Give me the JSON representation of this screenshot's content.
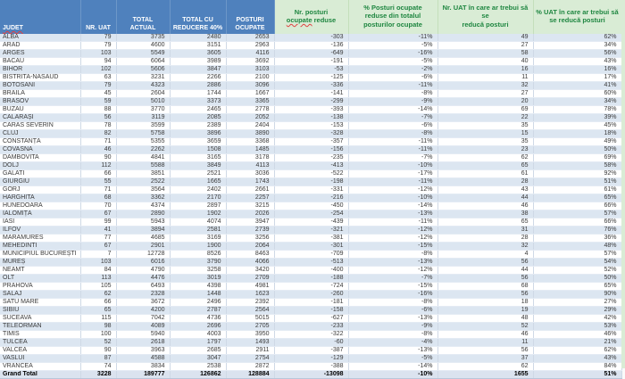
{
  "colors": {
    "header_blue": "#4f81bd",
    "header_text": "#ffffff",
    "green_header_bg": "#d9ecd5",
    "green_header_text": "#1e8640",
    "banded_row": "#dce6f1",
    "grand_total_bg": "#dbe3ef",
    "spellcheck_underline": "#e04040"
  },
  "table": {
    "headers": [
      {
        "group": "blue",
        "label": "JUDET",
        "parts": {
          "pre": "",
          "underline": "JUDET",
          "post": ""
        }
      },
      {
        "group": "blue",
        "label": "NR. UAT"
      },
      {
        "group": "blue",
        "label": "TOTAL\nACTUAL"
      },
      {
        "group": "blue",
        "label": "TOTAL CU\nREDUCERE 40%"
      },
      {
        "group": "blue",
        "label": "POSTURI\nOCUPATE"
      },
      {
        "group": "green",
        "label": "Nr. posturi\nocupate reduse",
        "parts": {
          "pre": "Nr. posturi\n",
          "underline": "ocupate",
          "post": " reduse"
        }
      },
      {
        "group": "green",
        "label": "% Posturi ocupate\nreduse din totalul\nposturilor ocupate"
      },
      {
        "group": "green",
        "label": "Nr. UAT în care ar trebui să se\nreducă posturi"
      },
      {
        "group": "green",
        "label": "% UAT în care ar trebui să\nse reducă posturi"
      }
    ],
    "rows": [
      [
        "ALBA",
        "79",
        "3735",
        "2480",
        "2653",
        "-303",
        "-11%",
        "49",
        "62%"
      ],
      [
        "ARAD",
        "79",
        "4600",
        "3151",
        "2963",
        "-136",
        "-5%",
        "27",
        "34%"
      ],
      [
        "ARGES",
        "103",
        "5549",
        "3605",
        "4116",
        "-649",
        "-16%",
        "58",
        "56%"
      ],
      [
        "BACAU",
        "94",
        "6064",
        "3989",
        "3692",
        "-191",
        "-5%",
        "40",
        "43%"
      ],
      [
        "BIHOR",
        "102",
        "5606",
        "3847",
        "3103",
        "-53",
        "-2%",
        "16",
        "16%"
      ],
      [
        "BISTRITA-NASAUD",
        "63",
        "3231",
        "2266",
        "2100",
        "-125",
        "-6%",
        "11",
        "17%"
      ],
      [
        "BOTOSANI",
        "79",
        "4323",
        "2886",
        "3096",
        "-336",
        "-11%",
        "32",
        "41%"
      ],
      [
        "BRAILA",
        "45",
        "2604",
        "1744",
        "1667",
        "-141",
        "-8%",
        "27",
        "60%"
      ],
      [
        "BRASOV",
        "59",
        "5010",
        "3373",
        "3365",
        "-299",
        "-9%",
        "20",
        "34%"
      ],
      [
        "BUZAU",
        "88",
        "3770",
        "2465",
        "2778",
        "-393",
        "-14%",
        "69",
        "78%"
      ],
      [
        "CĂLĂRAȘI",
        "56",
        "3119",
        "2085",
        "2052",
        "-138",
        "-7%",
        "22",
        "39%"
      ],
      [
        "CARAS SEVERIN",
        "78",
        "3599",
        "2389",
        "2404",
        "-153",
        "-6%",
        "35",
        "45%"
      ],
      [
        "CLUJ",
        "82",
        "5758",
        "3896",
        "3890",
        "-328",
        "-8%",
        "15",
        "18%"
      ],
      [
        "CONSTANȚA",
        "71",
        "5355",
        "3659",
        "3368",
        "-357",
        "-11%",
        "35",
        "49%"
      ],
      [
        "COVASNA",
        "46",
        "2262",
        "1508",
        "1485",
        "-156",
        "-11%",
        "23",
        "50%"
      ],
      [
        "DAMBOVITA",
        "90",
        "4841",
        "3165",
        "3178",
        "-235",
        "-7%",
        "62",
        "69%"
      ],
      [
        "DOLJ",
        "112",
        "5588",
        "3849",
        "4113",
        "-413",
        "-10%",
        "65",
        "58%"
      ],
      [
        "GALATI",
        "66",
        "3851",
        "2521",
        "3036",
        "-522",
        "-17%",
        "61",
        "92%"
      ],
      [
        "GIURGIU",
        "55",
        "2522",
        "1665",
        "1743",
        "-198",
        "-11%",
        "28",
        "51%"
      ],
      [
        "GORJ",
        "71",
        "3564",
        "2402",
        "2661",
        "-331",
        "-12%",
        "43",
        "61%"
      ],
      [
        "HARGHITA",
        "68",
        "3362",
        "2170",
        "2257",
        "-216",
        "-10%",
        "44",
        "65%"
      ],
      [
        "HUNEDOARA",
        "70",
        "4374",
        "2897",
        "3215",
        "-450",
        "-14%",
        "46",
        "66%"
      ],
      [
        "IALOMIȚA",
        "67",
        "2890",
        "1902",
        "2026",
        "-254",
        "-13%",
        "38",
        "57%"
      ],
      [
        "IASI",
        "99",
        "5943",
        "4074",
        "3947",
        "-439",
        "-11%",
        "65",
        "66%"
      ],
      [
        "ILFOV",
        "41",
        "3894",
        "2581",
        "2739",
        "-321",
        "-12%",
        "31",
        "76%"
      ],
      [
        "MARAMURES",
        "77",
        "4685",
        "3169",
        "3256",
        "-381",
        "-12%",
        "28",
        "36%"
      ],
      [
        "MEHEDINTI",
        "67",
        "2901",
        "1900",
        "2064",
        "-301",
        "-15%",
        "32",
        "48%"
      ],
      [
        "MUNICIPIUL BUCUREȘTI",
        "7",
        "12728",
        "8526",
        "8463",
        "-709",
        "-8%",
        "4",
        "57%"
      ],
      [
        "MUREȘ",
        "103",
        "6016",
        "3790",
        "4066",
        "-513",
        "-13%",
        "56",
        "54%"
      ],
      [
        "NEAMT",
        "84",
        "4790",
        "3258",
        "3420",
        "-400",
        "-12%",
        "44",
        "52%"
      ],
      [
        "OLT",
        "113",
        "4476",
        "3019",
        "2709",
        "-188",
        "-7%",
        "56",
        "50%"
      ],
      [
        "PRAHOVA",
        "105",
        "6493",
        "4398",
        "4981",
        "-724",
        "-15%",
        "68",
        "65%"
      ],
      [
        "SĂLAJ",
        "62",
        "2328",
        "1448",
        "1623",
        "-260",
        "-16%",
        "56",
        "90%"
      ],
      [
        "SATU MARE",
        "66",
        "3672",
        "2496",
        "2392",
        "-181",
        "-8%",
        "18",
        "27%"
      ],
      [
        "SIBIU",
        "65",
        "4200",
        "2787",
        "2564",
        "-158",
        "-6%",
        "19",
        "29%"
      ],
      [
        "SUCEAVA",
        "115",
        "7042",
        "4736",
        "5015",
        "-627",
        "-13%",
        "48",
        "42%"
      ],
      [
        "TELEORMAN",
        "98",
        "4089",
        "2696",
        "2705",
        "-233",
        "-9%",
        "52",
        "53%"
      ],
      [
        "TIMIS",
        "100",
        "5940",
        "4003",
        "3950",
        "-322",
        "-8%",
        "46",
        "46%"
      ],
      [
        "TULCEA",
        "52",
        "2618",
        "1797",
        "1493",
        "-60",
        "-4%",
        "11",
        "21%"
      ],
      [
        "VALCEA",
        "90",
        "3963",
        "2685",
        "2911",
        "-387",
        "-13%",
        "56",
        "62%"
      ],
      [
        "VASLUI",
        "87",
        "4588",
        "3047",
        "2754",
        "-129",
        "-5%",
        "37",
        "43%"
      ],
      [
        "VRANCEA",
        "74",
        "3834",
        "2538",
        "2872",
        "-388",
        "-14%",
        "62",
        "84%"
      ]
    ],
    "grand_total": [
      "Grand Total",
      "3228",
      "189777",
      "126862",
      "128884",
      "-13098",
      "-10%",
      "1655",
      "51%"
    ]
  }
}
